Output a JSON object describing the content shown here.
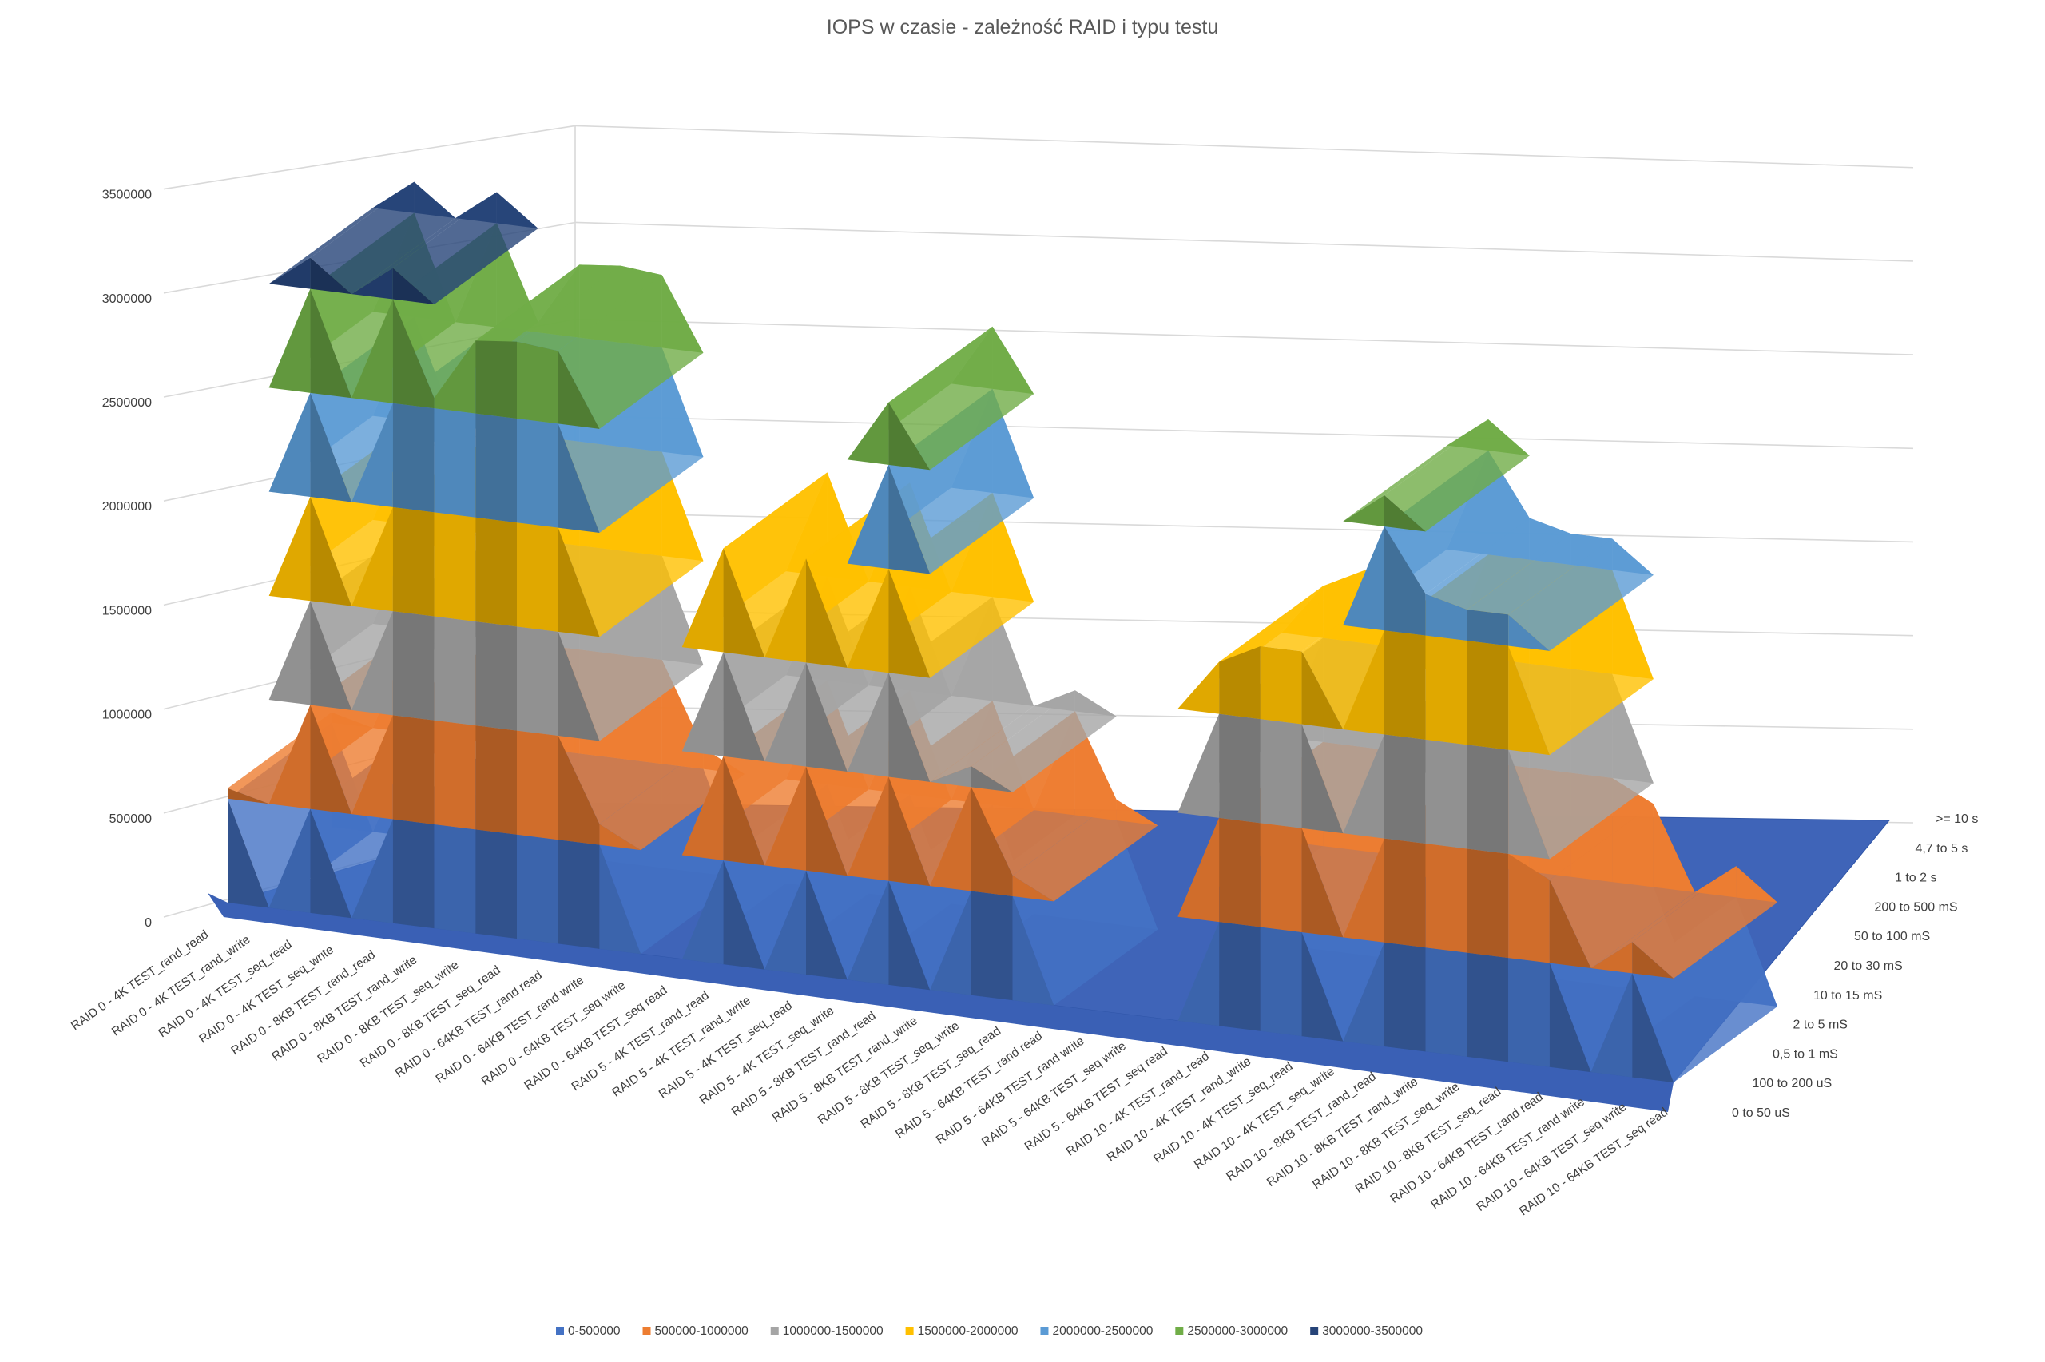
{
  "chart_data": {
    "type": "surface",
    "title": "IOPS w czasie - zależność RAID i typu testu",
    "z_ticks": [
      "0",
      "500000",
      "1000000",
      "1500000",
      "2000000",
      "2500000",
      "3000000",
      "3500000"
    ],
    "zlim": [
      0,
      3500000
    ],
    "grid": true,
    "legend_position": "bottom",
    "categories": [
      "RAID 0 - 4K TEST_rand_read",
      "RAID 0 - 4K TEST_rand_write",
      "RAID 0 - 4K TEST_seq_read",
      "RAID 0 - 4K TEST_seq_write",
      "RAID 0 - 8KB TEST_rand_read",
      "RAID 0 - 8KB TEST_rand_write",
      "RAID 0 - 8KB TEST_seq_write",
      "RAID 0 - 8KB TEST_seq_read",
      "RAID 0 - 64KB TEST_rand read",
      "RAID 0 - 64KB TEST_rand write",
      "RAID 0 - 64KB TEST_seq write",
      "RAID 0 - 64KB TEST_seq read",
      "RAID 5 - 4K TEST_rand_read",
      "RAID 5 - 4K TEST_rand_write",
      "RAID 5 - 4K TEST_seq_read",
      "RAID 5 - 4K TEST_seq_write",
      "RAID 5 - 8KB TEST_rand_read",
      "RAID 5 - 8KB TEST_rand_write",
      "RAID 5 - 8KB TEST_seq_write",
      "RAID 5 - 8KB TEST_seq_read",
      "RAID 5 - 64KB TEST_rand read",
      "RAID 5 - 64KB TEST_rand write",
      "RAID 5 - 64KB TEST_seq write",
      "RAID 5 - 64KB TEST_seq read",
      "RAID 10 - 4K TEST_rand_read",
      "RAID 10 - 4K TEST_rand_write",
      "RAID 10 - 4K TEST_seq_read",
      "RAID 10 - 4K TEST_seq_write",
      "RAID 10 - 8KB TEST_rand_read",
      "RAID 10 - 8KB TEST_rand_write",
      "RAID 10 - 8KB TEST_seq_write",
      "RAID 10 - 8KB TEST_seq_read",
      "RAID 10 - 64KB TEST_rand read",
      "RAID 10 - 64KB TEST_rand write",
      "RAID 10 - 64KB TEST_seq write",
      "RAID 10 - 64KB TEST_seq read"
    ],
    "series_axis": [
      "0 to 50 uS",
      "100 to 200 uS",
      "0,5 to 1 mS",
      "2 to 5 mS",
      "10 to 15 mS",
      "20 to 30 mS",
      "50 to 100 mS",
      "200 to 500 mS",
      "1 to 2 s",
      "4,7 to 5 s",
      ">= 10 s"
    ],
    "values": [
      [
        3100000,
        0,
        3120000,
        0,
        2830000,
        2800000,
        2640000,
        0,
        850000,
        0,
        0,
        0
      ],
      [
        0,
        0,
        0,
        0,
        0,
        0,
        0,
        0,
        0,
        0,
        0,
        0
      ],
      [
        0,
        0,
        0,
        0,
        0,
        0,
        0,
        0,
        0,
        0,
        0,
        0
      ]
    ],
    "legend": [
      {
        "label": "0-500000",
        "color": "#4472C4"
      },
      {
        "label": "500000-1000000",
        "color": "#ED7D31"
      },
      {
        "label": "1000000-1500000",
        "color": "#A5A5A5"
      },
      {
        "label": "1500000-2000000",
        "color": "#FFC000"
      },
      {
        "label": "2000000-2500000",
        "color": "#5B9BD5"
      },
      {
        "label": "2500000-3000000",
        "color": "#70AD47"
      },
      {
        "label": "3000000-3500000",
        "color": "#264478"
      }
    ],
    "front_row": [
      550000,
      0,
      3150000,
      0,
      3150000,
      2550000,
      2850000,
      2870000,
      2850000,
      600000,
      0,
      0,
      2000000,
      0,
      2000000,
      0,
      2800000,
      0,
      1100000,
      600000,
      0,
      0,
      0,
      0,
      1750000,
      1850000,
      1850000,
      0,
      2650000,
      2200000,
      2150000,
      2150000,
      900000,
      0,
      650000,
      0
    ]
  }
}
